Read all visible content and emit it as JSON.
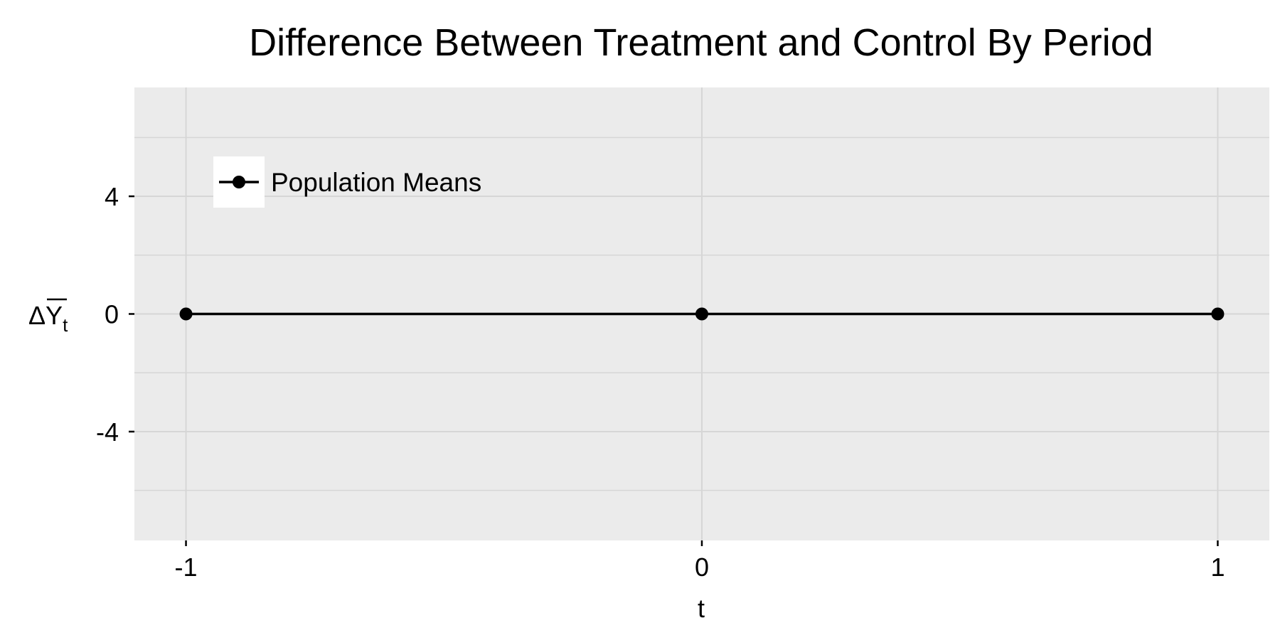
{
  "colors": {
    "panel_background": "#EBEBEB",
    "major_grid": "#D6D6D6",
    "minor_grid": "#D6D6D6",
    "series_line": "#000000",
    "legend_background": "#FFFFFF",
    "text": "#000000"
  },
  "chart_data": {
    "type": "line",
    "title": "Difference Between Treatment and Control By Period",
    "xlabel": "t",
    "ylabel": "ΔY̅t",
    "ylabel_parts": {
      "symbol": "Δ",
      "var": "Y",
      "subscript": "t",
      "overline": true
    },
    "x_ticks": [
      -1,
      0,
      1
    ],
    "x_tick_labels": [
      "-1",
      "0",
      "1"
    ],
    "y_ticks": [
      -4,
      0,
      4
    ],
    "y_tick_labels": [
      "-4",
      "0",
      "4"
    ],
    "y_minor_ticks": [
      -6,
      -2,
      2,
      6
    ],
    "xlim": [
      -1.1,
      1.1
    ],
    "ylim": [
      -7.7,
      7.7
    ],
    "grid": true,
    "legend": {
      "position": "top-left",
      "entries": [
        "Population Means"
      ]
    },
    "series": [
      {
        "name": "Population Means",
        "x": [
          -1,
          0,
          1
        ],
        "y": [
          0,
          0,
          0
        ],
        "marker": "circle"
      }
    ]
  }
}
